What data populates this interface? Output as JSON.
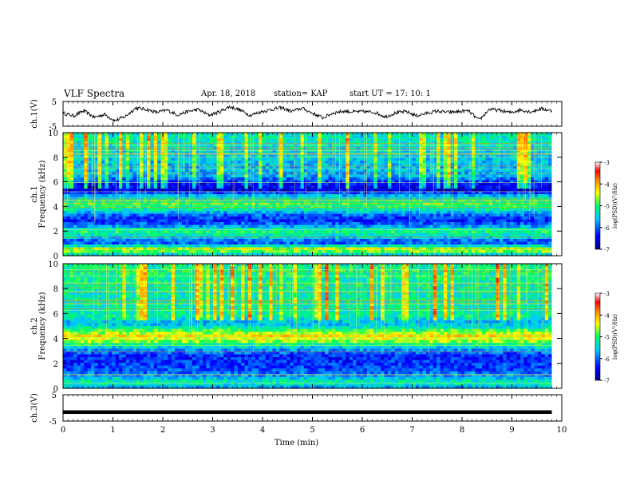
{
  "header": {
    "title": "VLF Spectra",
    "date": "Apr. 18, 2018",
    "station": "station= KAP",
    "start": "start UT =   17: 10: 1"
  },
  "chart_data": [
    {
      "type": "line",
      "panel": "ch1-waveform",
      "ylabel": "ch.1(V)",
      "yticks": [
        "5",
        "-5"
      ],
      "ylim": [
        -5,
        5
      ],
      "series": [
        {
          "values": [
            0.3,
            -0.8,
            1.2,
            -1.4,
            -0.2,
            -2.8,
            -1.0,
            2.4,
            1.8,
            0.6,
            1.5,
            -0.4,
            0.9,
            1.8,
            -0.5,
            0.7,
            2.9,
            1.6,
            -0.6,
            0.8,
            1.7,
            2.5,
            1.0,
            2.3,
            0.2,
            -1.6,
            0.4,
            1.1,
            0.8,
            0.9,
            0.6,
            -1.2,
            0.4,
            0.9,
            -0.8,
            0.3,
            1.1,
            0.6,
            0.9,
            1.2,
            -2.6,
            1.9,
            1.4,
            0.5,
            1.6,
            0.8,
            2.1,
            1.2
          ]
        }
      ],
      "line_color": "#000000"
    },
    {
      "type": "heatmap",
      "panel": "ch1-spectrogram",
      "ylabel": "Frequency (kHz)",
      "channel_label": "ch.1",
      "yticks": [
        "0",
        "2",
        "4",
        "6",
        "8",
        "10"
      ],
      "ylim": [
        0,
        10
      ],
      "colorbar": {
        "label": "log(PSD)(V²/Hz)",
        "ticks": [
          "-3",
          "-4",
          "-5",
          "-6",
          "-7"
        ],
        "range": [
          -7,
          -3
        ]
      },
      "freq_profile": [
        {
          "f": 0.0,
          "v": -5.6
        },
        {
          "f": 0.5,
          "v": -4.4
        },
        {
          "f": 0.8,
          "v": -5.4
        },
        {
          "f": 1.1,
          "v": -6.2
        },
        {
          "f": 1.5,
          "v": -5.5
        },
        {
          "f": 2.0,
          "v": -5.0
        },
        {
          "f": 2.4,
          "v": -5.8
        },
        {
          "f": 2.8,
          "v": -6.3
        },
        {
          "f": 3.3,
          "v": -6.0
        },
        {
          "f": 3.8,
          "v": -5.2
        },
        {
          "f": 4.2,
          "v": -4.9
        },
        {
          "f": 4.6,
          "v": -5.3
        },
        {
          "f": 5.0,
          "v": -5.8
        },
        {
          "f": 5.3,
          "v": -6.6
        },
        {
          "f": 5.8,
          "v": -6.4
        },
        {
          "f": 6.5,
          "v": -5.7
        },
        {
          "f": 7.5,
          "v": -5.6
        },
        {
          "f": 8.5,
          "v": -5.5
        },
        {
          "f": 9.5,
          "v": -5.3
        },
        {
          "f": 10.0,
          "v": -5.4
        }
      ]
    },
    {
      "type": "heatmap",
      "panel": "ch2-spectrogram",
      "ylabel": "Frequency (kHz)",
      "channel_label": "ch.2",
      "yticks": [
        "0",
        "2",
        "4",
        "6",
        "8",
        "10"
      ],
      "ylim": [
        0,
        10
      ],
      "colorbar": {
        "label": "log(PSD)(V²/Hz)",
        "ticks": [
          "-3",
          "-4",
          "-5",
          "-6",
          "-7"
        ],
        "range": [
          -7,
          -3
        ]
      },
      "freq_profile": [
        {
          "f": 0.0,
          "v": -5.8
        },
        {
          "f": 0.5,
          "v": -5.2
        },
        {
          "f": 1.0,
          "v": -5.8
        },
        {
          "f": 1.5,
          "v": -6.1
        },
        {
          "f": 2.0,
          "v": -6.2
        },
        {
          "f": 2.5,
          "v": -6.3
        },
        {
          "f": 3.0,
          "v": -5.9
        },
        {
          "f": 3.4,
          "v": -5.4
        },
        {
          "f": 3.8,
          "v": -4.6
        },
        {
          "f": 4.2,
          "v": -4.3
        },
        {
          "f": 4.6,
          "v": -4.8
        },
        {
          "f": 5.0,
          "v": -5.5
        },
        {
          "f": 5.4,
          "v": -5.6
        },
        {
          "f": 5.8,
          "v": -5.2
        },
        {
          "f": 6.5,
          "v": -5.3
        },
        {
          "f": 7.5,
          "v": -5.3
        },
        {
          "f": 8.5,
          "v": -5.2
        },
        {
          "f": 9.5,
          "v": -5.1
        },
        {
          "f": 10.0,
          "v": -5.2
        }
      ]
    },
    {
      "type": "line",
      "panel": "ch3-waveform",
      "ylabel": "ch.3(V)",
      "yticks": [
        "5",
        "-5"
      ],
      "ylim": [
        -5,
        5
      ],
      "series": [
        {
          "values": [
            -1.6,
            -1.6
          ]
        }
      ],
      "line_color": "#000000"
    }
  ],
  "xaxis": {
    "label": "Time (min)",
    "ticks": [
      "0",
      "1",
      "2",
      "3",
      "4",
      "5",
      "6",
      "7",
      "8",
      "9",
      "10"
    ],
    "xlim": [
      0,
      10
    ],
    "data_end": 9.8
  }
}
